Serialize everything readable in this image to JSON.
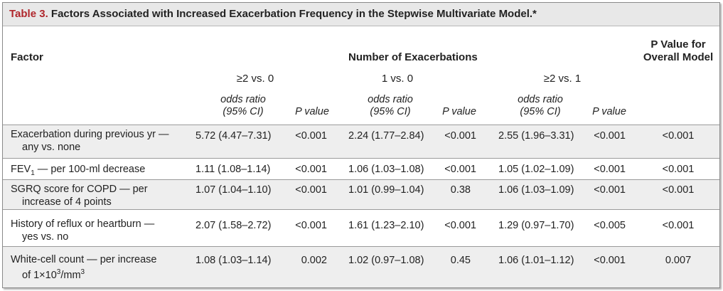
{
  "table": {
    "number": "Table 3.",
    "title": "Factors Associated with Increased Exacerbation Frequency in the Stepwise Multivariate Model.*",
    "header": {
      "factor": "Factor",
      "group": "Number of Exacerbations",
      "overall_line1": "P Value for",
      "overall_line2": "Overall Model",
      "comparisons": [
        "≥2 vs. 0",
        "1 vs. 0",
        "≥2 vs. 1"
      ],
      "or_line1": "odds ratio",
      "or_line2": "(95% CI)",
      "pval": "P value"
    },
    "rows": [
      {
        "factor_line1": "Exacerbation during previous yr —",
        "factor_line2": "any vs. none",
        "cells": [
          "5.72 (4.47–7.31)",
          "<0.001",
          "2.24 (1.77–2.84)",
          "<0.001",
          "2.55 (1.96–3.31)",
          "<0.001",
          "<0.001"
        ]
      },
      {
        "factor_prefix": "FEV",
        "factor_sub": "1",
        "factor_suffix": " — per 100-ml decrease",
        "cells": [
          "1.11 (1.08–1.14)",
          "<0.001",
          "1.06 (1.03–1.08)",
          "<0.001",
          "1.05 (1.02–1.09)",
          "<0.001",
          "<0.001"
        ]
      },
      {
        "factor_line1": "SGRQ score for COPD — per",
        "factor_line2": "increase of 4 points",
        "cells": [
          "1.07 (1.04–1.10)",
          "<0.001",
          "1.01 (0.99–1.04)",
          "0.38",
          "1.06 (1.03–1.09)",
          "<0.001",
          "<0.001"
        ]
      },
      {
        "factor_line1": "History of reflux or heartburn —",
        "factor_line2": "yes vs. no",
        "cells": [
          "2.07 (1.58–2.72)",
          "<0.001",
          "1.61 (1.23–2.10)",
          "<0.001",
          "1.29 (0.97–1.70)",
          "<0.005",
          "<0.001"
        ]
      },
      {
        "factor_line1": "White-cell count — per increase",
        "factor_line2_prefix": "of 1×10",
        "factor_line2_sup": "3",
        "factor_line2_suffix": "/mm",
        "factor_line2_sup2": "3",
        "cells": [
          "1.08 (1.03–1.14)",
          "0.002",
          "1.02 (0.97–1.08)",
          "0.45",
          "1.06 (1.01–1.12)",
          "<0.001",
          "0.007"
        ]
      }
    ]
  }
}
